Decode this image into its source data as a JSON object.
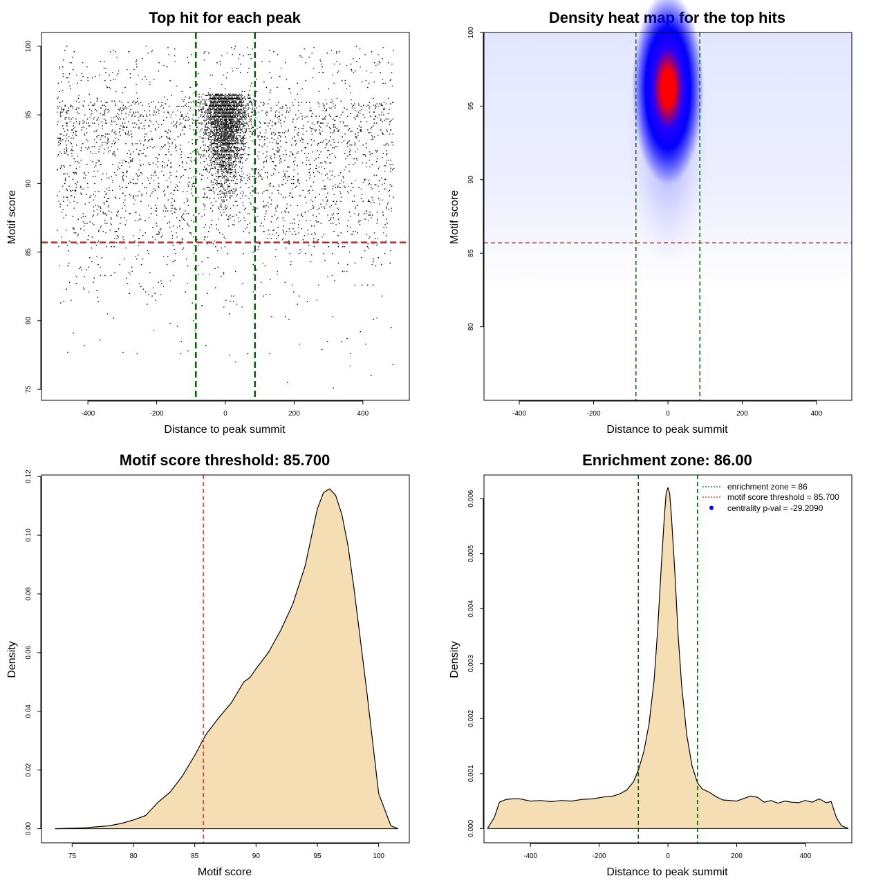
{
  "chart_data": [
    {
      "type": "scatter",
      "title": "Top hit for each peak",
      "xlabel": "Distance to peak summit",
      "ylabel": "Motif score",
      "xlim": [
        -535,
        535
      ],
      "ylim": [
        74.2,
        101
      ],
      "x_ticks": [
        -400,
        -200,
        0,
        200,
        400
      ],
      "y_ticks": [
        75,
        80,
        85,
        90,
        95,
        100
      ],
      "hlines": [
        85.7
      ],
      "vlines": [
        -86,
        86
      ],
      "hline_color": "#dd2222",
      "vline_color": "#006600",
      "x_range": [
        -490,
        490
      ],
      "score_range": [
        75,
        100
      ],
      "center_cluster": {
        "x_center": 0,
        "score_range": [
          87,
          100
        ]
      }
    },
    {
      "type": "heatmap",
      "title": "Density heat map for the top hits",
      "xlabel": "Distance to peak summit",
      "ylabel": "Motif score",
      "xlim": [
        -495,
        495
      ],
      "ylim": [
        75,
        100
      ],
      "x_ticks": [
        -400,
        -200,
        0,
        200,
        400
      ],
      "y_ticks": [
        80,
        85,
        90,
        95,
        100
      ],
      "hlines": [
        85.7
      ],
      "vlines": [
        -86,
        86
      ],
      "colormap": [
        "#ffffff",
        "#0000ff",
        "#ff0000"
      ],
      "peak": {
        "x": 0,
        "score": 96.5
      }
    },
    {
      "type": "area",
      "title": "Motif score threshold: 85.700",
      "xlabel": "Motif score",
      "ylabel": "Density",
      "xlim": [
        72.5,
        102.5
      ],
      "ylim": [
        -0.0048,
        0.1205
      ],
      "x_ticks": [
        75,
        80,
        85,
        90,
        95,
        100
      ],
      "y_ticks": [
        0.0,
        0.02,
        0.04,
        0.06,
        0.08,
        0.1,
        0.12
      ],
      "y_tick_labels": [
        "0.00",
        "0.02",
        "0.04",
        "0.06",
        "0.08",
        "0.10",
        "0.12"
      ],
      "vlines": [
        85.7
      ],
      "fill_color": "#f5deb3",
      "x": [
        73.6,
        76,
        78,
        79,
        80,
        81,
        82,
        83,
        84,
        85,
        85.7,
        86,
        87,
        88,
        89,
        89.5,
        90,
        91,
        92,
        93,
        94,
        95,
        95.5,
        96,
        96.5,
        97,
        97.5,
        98,
        99,
        100,
        101,
        101.6
      ],
      "y": [
        0,
        0.0003,
        0.001,
        0.0018,
        0.003,
        0.0045,
        0.009,
        0.0125,
        0.018,
        0.025,
        0.0305,
        0.0326,
        0.038,
        0.043,
        0.05,
        0.0515,
        0.0545,
        0.06,
        0.0675,
        0.0765,
        0.0895,
        0.109,
        0.1145,
        0.1158,
        0.1135,
        0.107,
        0.0965,
        0.0815,
        0.048,
        0.012,
        0.001,
        0
      ]
    },
    {
      "type": "area",
      "title": "Enrichment zone: 86.00",
      "xlabel": "Distance to peak summit",
      "ylabel": "Density",
      "xlim": [
        -535,
        535
      ],
      "ylim": [
        -0.00026,
        0.00643
      ],
      "x_ticks": [
        -400,
        -200,
        0,
        200,
        400
      ],
      "y_ticks": [
        0.0,
        0.001,
        0.002,
        0.003,
        0.004,
        0.005,
        0.006
      ],
      "y_tick_labels": [
        "0.000",
        "0.001",
        "0.002",
        "0.003",
        "0.004",
        "0.005",
        "0.006"
      ],
      "vlines": [
        -86,
        86
      ],
      "fill_color": "#f5deb3",
      "x": [
        -525,
        -505,
        -490,
        -470,
        -450,
        -430,
        -400,
        -370,
        -340,
        -310,
        -280,
        -250,
        -220,
        -200,
        -180,
        -160,
        -140,
        -120,
        -100,
        -86,
        -70,
        -55,
        -40,
        -30,
        -20,
        -10,
        -5,
        0,
        5,
        10,
        20,
        30,
        40,
        55,
        70,
        86,
        100,
        120,
        140,
        160,
        200,
        240,
        260,
        280,
        300,
        320,
        340,
        360,
        380,
        400,
        420,
        440,
        460,
        475,
        490,
        505,
        525
      ],
      "y": [
        0,
        0.0002,
        0.00048,
        0.00053,
        0.00054,
        0.00054,
        0.0005,
        0.00051,
        0.00049,
        0.00051,
        0.0005,
        0.00053,
        0.00054,
        0.00056,
        0.00058,
        0.00059,
        0.00063,
        0.0007,
        0.00085,
        0.00106,
        0.0014,
        0.0019,
        0.0027,
        0.0036,
        0.0047,
        0.0057,
        0.0061,
        0.0062,
        0.0061,
        0.0057,
        0.0047,
        0.0035,
        0.0026,
        0.0017,
        0.00115,
        0.00083,
        0.00072,
        0.00066,
        0.00058,
        0.00052,
        0.0005,
        0.00059,
        0.00057,
        0.00048,
        0.00051,
        0.00046,
        0.0005,
        0.00048,
        0.00047,
        0.00051,
        0.00048,
        0.00054,
        0.00047,
        0.00049,
        0.0002,
        5e-05,
        0
      ],
      "legend": {
        "position": "top-right",
        "entries": [
          {
            "label": "enrichment zone = 86",
            "color": "#006600",
            "style": "dotted-line"
          },
          {
            "label": "motif score threshold = 85.700",
            "color": "#dd2222",
            "style": "dotted-line"
          },
          {
            "label": "centrality p-val = -29.2090",
            "color": "#0000ff",
            "style": "point"
          }
        ]
      }
    }
  ]
}
